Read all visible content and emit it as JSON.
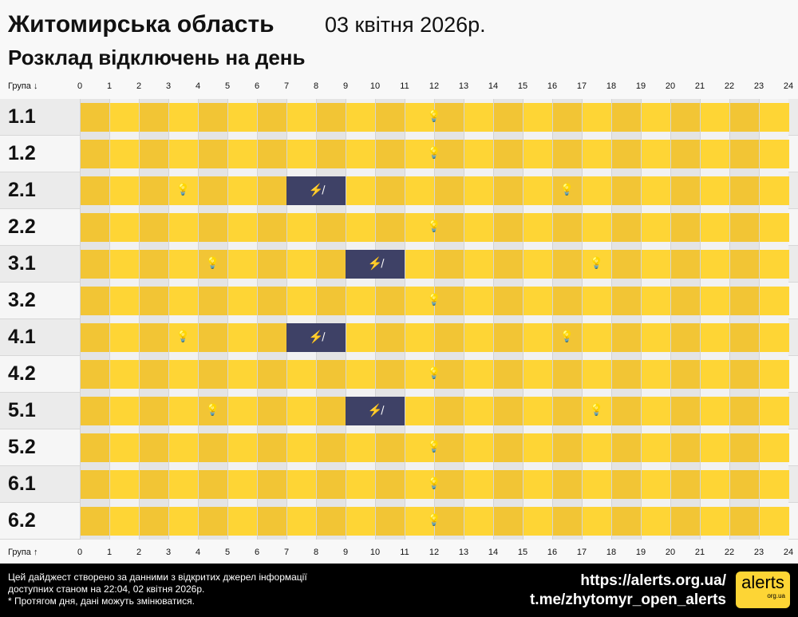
{
  "header": {
    "region": "Житомирська область",
    "date": "03 квітня 2026р.",
    "subtitle": "Розклад відключень на день"
  },
  "axis": {
    "top_label": "Група ↓",
    "bottom_label": "Група ↑",
    "hours": [
      "0",
      "1",
      "2",
      "3",
      "4",
      "5",
      "6",
      "7",
      "8",
      "9",
      "10",
      "11",
      "12",
      "13",
      "14",
      "15",
      "16",
      "17",
      "18",
      "19",
      "20",
      "21",
      "22",
      "23",
      "24"
    ]
  },
  "colors": {
    "power_on_dark": "#f2c535",
    "power_on_light": "#fed535",
    "outage": "#3e4166"
  },
  "icons": {
    "power_on": "lightbulb-icon",
    "outage": "no-power-icon"
  },
  "groups": [
    {
      "name": "1.1",
      "outages": []
    },
    {
      "name": "1.2",
      "outages": []
    },
    {
      "name": "2.1",
      "outages": [
        [
          7,
          9
        ]
      ]
    },
    {
      "name": "2.2",
      "outages": []
    },
    {
      "name": "3.1",
      "outages": [
        [
          9,
          11
        ]
      ]
    },
    {
      "name": "3.2",
      "outages": []
    },
    {
      "name": "4.1",
      "outages": [
        [
          7,
          9
        ]
      ]
    },
    {
      "name": "4.2",
      "outages": []
    },
    {
      "name": "5.1",
      "outages": [
        [
          9,
          11
        ]
      ]
    },
    {
      "name": "5.2",
      "outages": []
    },
    {
      "name": "6.1",
      "outages": []
    },
    {
      "name": "6.2",
      "outages": []
    }
  ],
  "footer": {
    "line1": "Цей дайджест створено за данними з відкритих джерел інформації",
    "line2": "доступних станом на 22:04, 02 квітня 2026р.",
    "line3": "* Протягом дня, дані можуть змінюватися.",
    "url": "https://alerts.org.ua/",
    "telegram": "t.me/zhytomyr_open_alerts",
    "logo": "alerts",
    "logo_sub": "org.ua"
  }
}
